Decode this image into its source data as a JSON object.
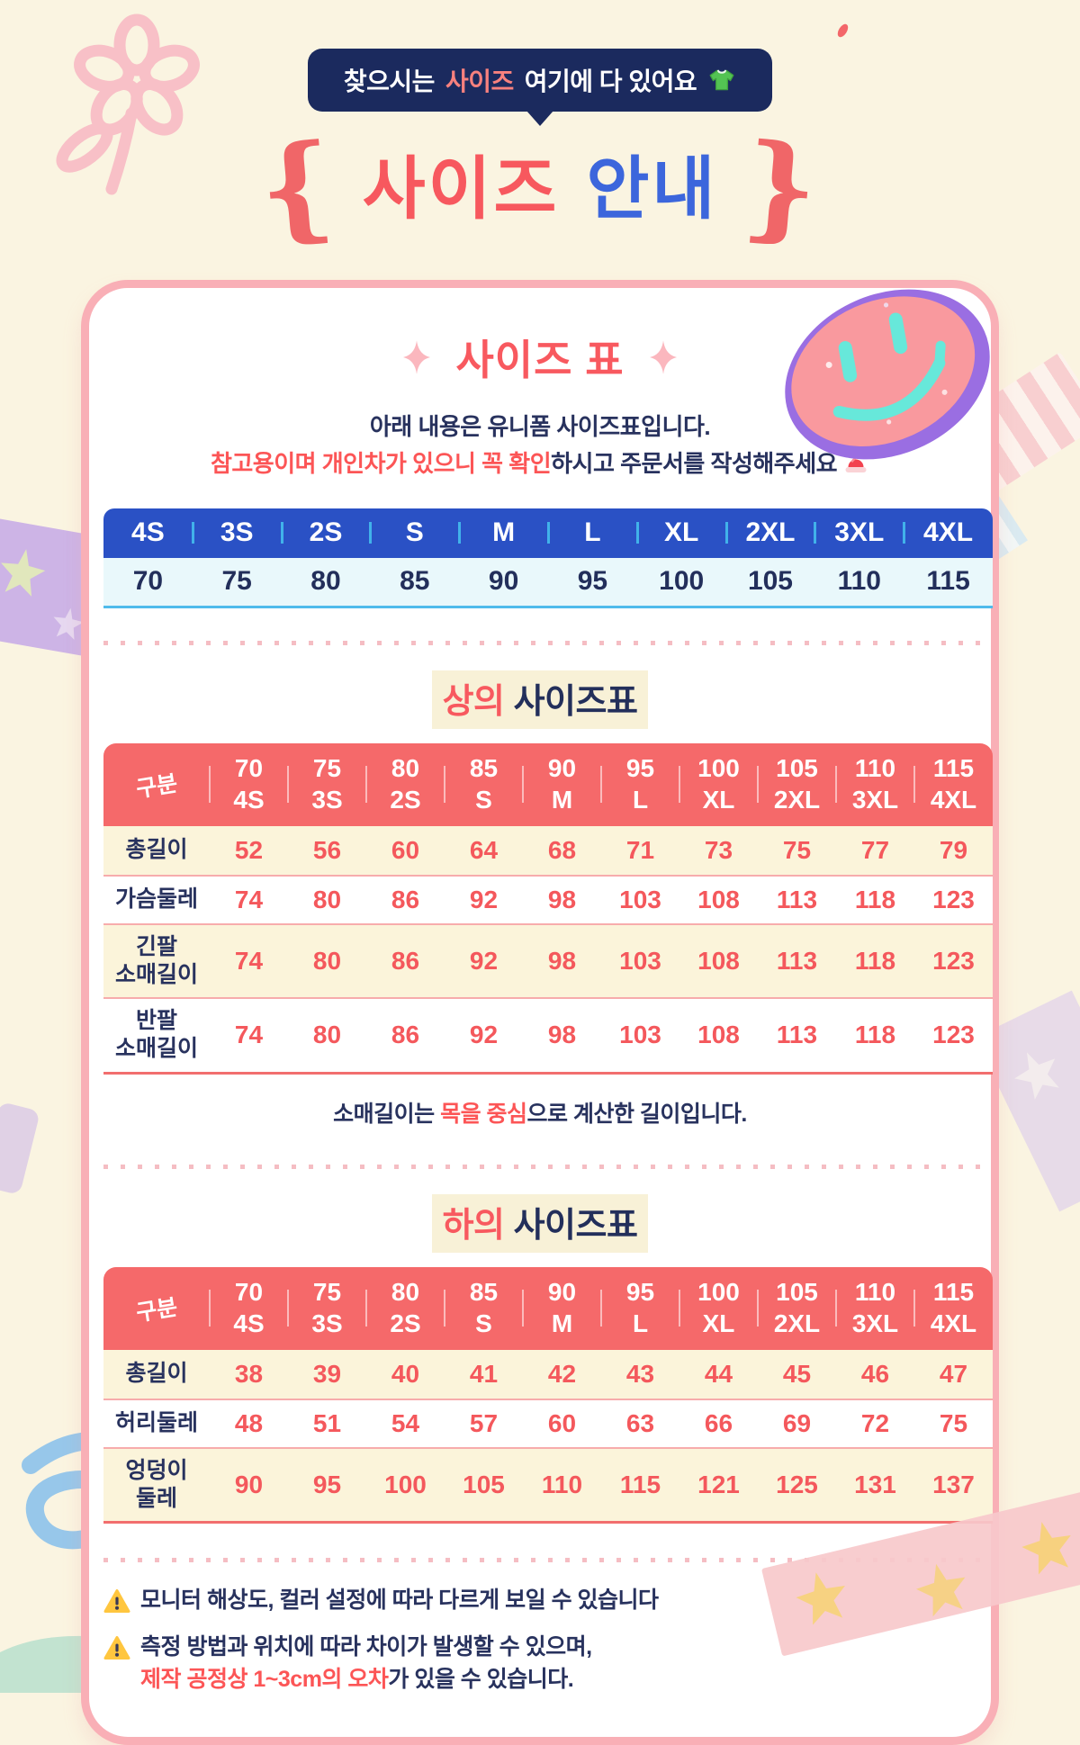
{
  "page": {
    "background": "#FAF4E1",
    "card_border": "#F9AFB6"
  },
  "banner": {
    "pre": "찾으시는",
    "highlight": "사이즈",
    "post": "여기에 다 있어요",
    "icon": "tshirt-icon",
    "bg_color": "#1B2A5E",
    "highlight_color": "#F8817E"
  },
  "title": {
    "red": "사이즈",
    "blue": "안내",
    "red_color": "#F7585E",
    "blue_color": "#3C66DC"
  },
  "card": {
    "overview": {
      "title": "사이즈 표",
      "sparkle_icon": "sparkle-diamond-icon",
      "desc_line1": "아래 내용은 유니폼 사이즈표입니다.",
      "desc_line2_red": "참고용이며 개인차가 있으니 꼭 확인",
      "desc_line2_navy": "하시고 주문서를 작성해주세요",
      "alert_icon": "siren-icon",
      "size_header": [
        "4S",
        "3S",
        "2S",
        "S",
        "M",
        "L",
        "XL",
        "2XL",
        "3XL",
        "4XL"
      ],
      "size_values": [
        "70",
        "75",
        "80",
        "85",
        "90",
        "95",
        "100",
        "105",
        "110",
        "115"
      ],
      "header_bg": "#2A51C5",
      "value_row_bg": "#E9F8FB"
    },
    "top_table": {
      "heading_red": "상의",
      "heading_navy": "사이즈표",
      "corner_label": "구분",
      "header_bg": "#F5696A",
      "columns": [
        {
          "num": "70",
          "size": "4S"
        },
        {
          "num": "75",
          "size": "3S"
        },
        {
          "num": "80",
          "size": "2S"
        },
        {
          "num": "85",
          "size": "S"
        },
        {
          "num": "90",
          "size": "M"
        },
        {
          "num": "95",
          "size": "L"
        },
        {
          "num": "100",
          "size": "XL"
        },
        {
          "num": "105",
          "size": "2XL"
        },
        {
          "num": "110",
          "size": "3XL"
        },
        {
          "num": "115",
          "size": "4XL"
        }
      ],
      "rows": [
        {
          "label": "총길이",
          "values": [
            52,
            56,
            60,
            64,
            68,
            71,
            73,
            75,
            77,
            79
          ]
        },
        {
          "label": "가슴둘레",
          "values": [
            74,
            80,
            86,
            92,
            98,
            103,
            108,
            113,
            118,
            123
          ]
        },
        {
          "label": "긴팔\n소매길이",
          "values": [
            74,
            80,
            86,
            92,
            98,
            103,
            108,
            113,
            118,
            123
          ]
        },
        {
          "label": "반팔\n소매길이",
          "values": [
            74,
            80,
            86,
            92,
            98,
            103,
            108,
            113,
            118,
            123
          ]
        }
      ],
      "note_pre": "소매길이는 ",
      "note_red": "목을 중심",
      "note_post": "으로 계산한 길이입니다."
    },
    "bottom_table": {
      "heading_red": "하의",
      "heading_navy": "사이즈표",
      "corner_label": "구분",
      "header_bg": "#F5696A",
      "columns": [
        {
          "num": "70",
          "size": "4S"
        },
        {
          "num": "75",
          "size": "3S"
        },
        {
          "num": "80",
          "size": "2S"
        },
        {
          "num": "85",
          "size": "S"
        },
        {
          "num": "90",
          "size": "M"
        },
        {
          "num": "95",
          "size": "L"
        },
        {
          "num": "100",
          "size": "XL"
        },
        {
          "num": "105",
          "size": "2XL"
        },
        {
          "num": "110",
          "size": "3XL"
        },
        {
          "num": "115",
          "size": "4XL"
        }
      ],
      "rows": [
        {
          "label": "총길이",
          "values": [
            38,
            39,
            40,
            41,
            42,
            43,
            44,
            45,
            46,
            47
          ]
        },
        {
          "label": "허리둘레",
          "values": [
            48,
            51,
            54,
            57,
            60,
            63,
            66,
            69,
            72,
            75
          ]
        },
        {
          "label": "엉덩이\n둘레",
          "values": [
            90,
            95,
            100,
            105,
            110,
            115,
            121,
            125,
            131,
            137
          ]
        }
      ]
    },
    "warnings": {
      "icon": "warning-triangle-icon",
      "line1": "모니터 해상도, 컬러 설정에 따라 다르게 보일 수 있습니다",
      "line2a": "측정 방법과 위치에 따라 차이가 발생할 수 있으며,",
      "line2b_red": "제작 공정상 1~3cm의 오차",
      "line2b_navy": "가 있을 수 있습니다."
    }
  },
  "decorations": {
    "sticker": "smiley-sticker",
    "flower": "crayon-flower-doodle",
    "tapes": [
      "pink-striped-washi-tape",
      "purple-star-washi-tape",
      "pink-star-washi-tape"
    ],
    "accent_red": "#F4585C",
    "accent_navy": "#28325E",
    "accent_blue": "#2A51C5",
    "cream_row": "#FBF4DA"
  }
}
